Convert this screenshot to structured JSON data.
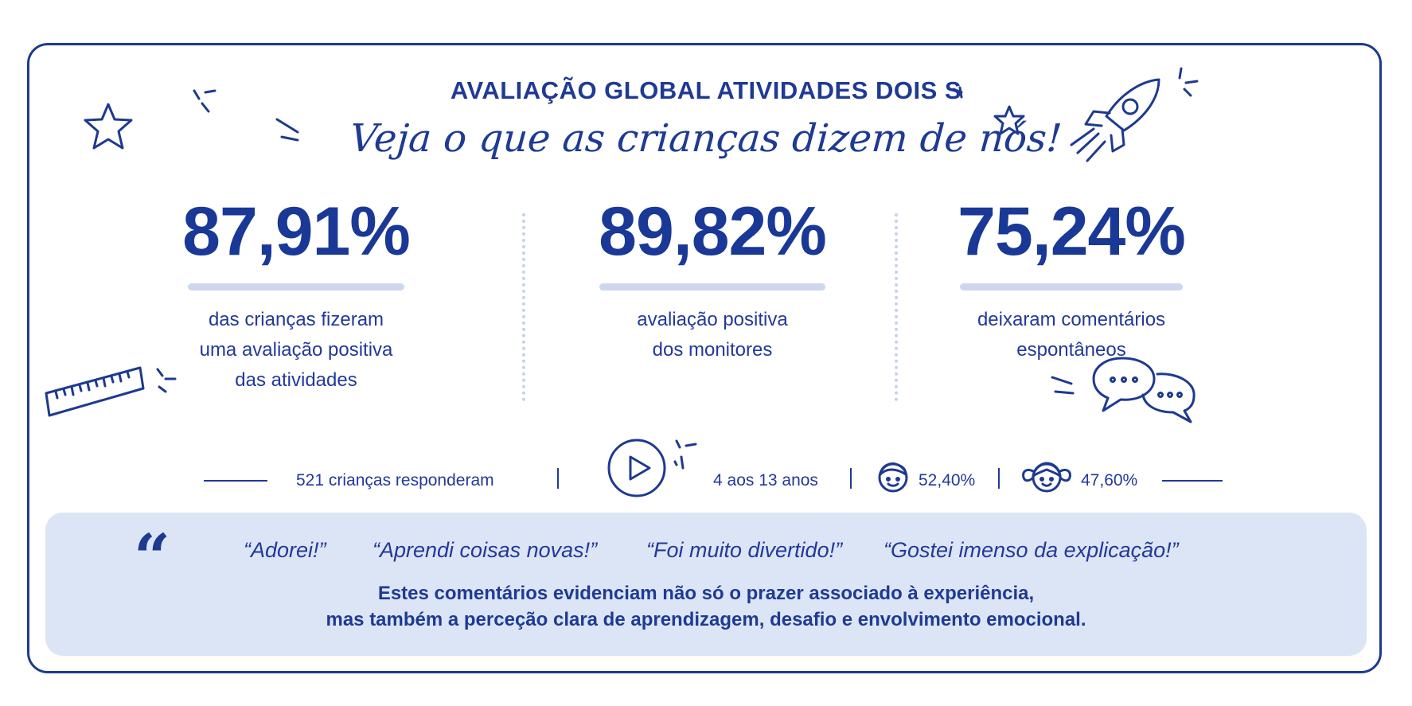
{
  "header": {
    "title": "AVALIAÇÃO GLOBAL ATIVIDADES DOIS S",
    "subtitle": "Veja o que as crianças dizem de nós!"
  },
  "stats": [
    {
      "value": "87,91%",
      "percent": 87.91,
      "desc_lines": [
        "das crianças fizeram",
        "uma avaliação positiva",
        "das atividades"
      ]
    },
    {
      "value": "89,82%",
      "percent": 89.82,
      "desc_lines": [
        "avaliação positiva",
        "dos monitores"
      ]
    },
    {
      "value": "75,24%",
      "percent": 75.24,
      "desc_lines": [
        "deixaram comentários",
        "espontâneos"
      ]
    }
  ],
  "info": {
    "respondents": "521 crianças responderam",
    "ages": "4 aos 13 anos",
    "boys_percent": "52,40%",
    "girls_percent": "47,60%"
  },
  "quotes": {
    "items": [
      "“Adorei!”",
      "“Aprendi coisas novas!”",
      "“Foi muito divertido!”",
      "“Gostei imenso da explicação!”"
    ],
    "mark": "“",
    "comment_lines": [
      "Estes comentários evidenciam não só o prazer associado à experiência,",
      "mas também a perceção clara de aprendizagem, desafio e envolvimento emocional."
    ]
  },
  "icons": {
    "star": "star-icon",
    "rocket": "rocket-icon",
    "ruler": "ruler-icon",
    "play": "play-icon",
    "boy": "boy-face-icon",
    "girl": "girl-face-icon",
    "chat": "chat-bubbles-icon"
  },
  "colors": {
    "primary": "#1d3a8f",
    "underline": "#cdd8ef",
    "quote_bg": "#dce5f5"
  }
}
